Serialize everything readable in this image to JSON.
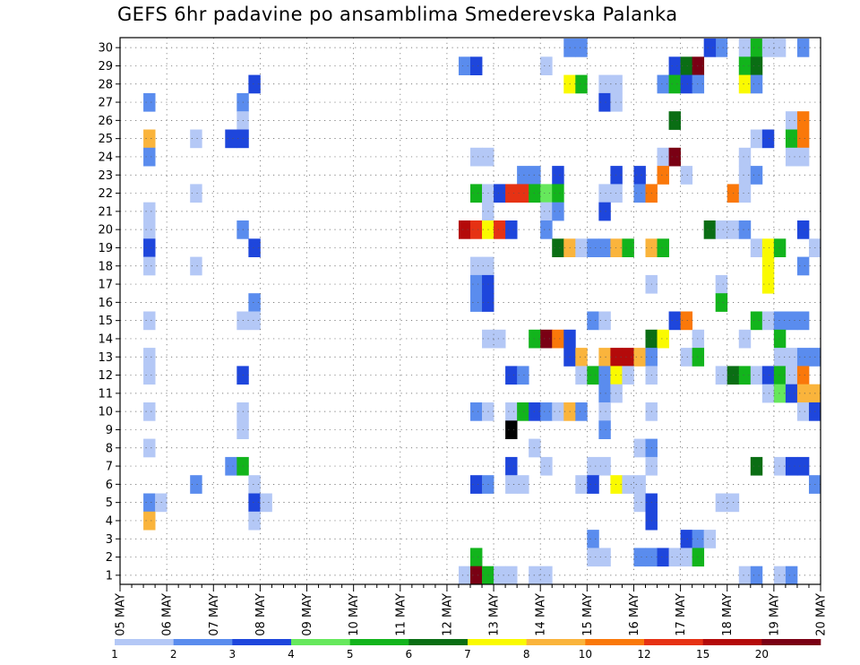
{
  "chart_data": {
    "type": "heatmap",
    "title": "GEFS 6hr padavine po ansamblima Smederevska Palanka",
    "y_ticks": [
      1,
      2,
      3,
      4,
      5,
      6,
      7,
      8,
      9,
      10,
      11,
      12,
      13,
      14,
      15,
      16,
      17,
      18,
      19,
      20,
      21,
      22,
      23,
      24,
      25,
      26,
      27,
      28,
      29,
      30
    ],
    "x_ticks": [
      "05 MAY",
      "06 MAY",
      "07 MAY",
      "08 MAY",
      "09 MAY",
      "10 MAY",
      "11 MAY",
      "12 MAY",
      "13 MAY",
      "14 MAY",
      "15 MAY",
      "16 MAY",
      "17 MAY",
      "18 MAY",
      "19 MAY",
      "20 MAY"
    ],
    "x_steps_per_day": 4,
    "x_range_steps": [
      0,
      60
    ],
    "legend": {
      "labels": [
        "1",
        "2",
        "3",
        "4",
        "5",
        "6",
        "7",
        "8",
        "10",
        "12",
        "15",
        "20"
      ],
      "colors": [
        "#b4c8f6",
        "#5a8cee",
        "#1e46dc",
        "#66e85c",
        "#12b41c",
        "#0a6e14",
        "#fafa00",
        "#fab43c",
        "#fa780a",
        "#e63214",
        "#b40a0a",
        "#7a0014"
      ]
    },
    "cells": [
      [
        30,
        39,
        2
      ],
      [
        30,
        40,
        2
      ],
      [
        30,
        52,
        2
      ],
      [
        30,
        51,
        3
      ],
      [
        30,
        54,
        1
      ],
      [
        30,
        55,
        5
      ],
      [
        30,
        56,
        1
      ],
      [
        30,
        57,
        1
      ],
      [
        30,
        59,
        2
      ],
      [
        29,
        30,
        2
      ],
      [
        29,
        31,
        3
      ],
      [
        29,
        37,
        1
      ],
      [
        29,
        48,
        3
      ],
      [
        29,
        49,
        6
      ],
      [
        29,
        50,
        12
      ],
      [
        29,
        54,
        5
      ],
      [
        29,
        55,
        6
      ],
      [
        28,
        12,
        3
      ],
      [
        28,
        39,
        7
      ],
      [
        28,
        40,
        5
      ],
      [
        28,
        42,
        1
      ],
      [
        28,
        43,
        1
      ],
      [
        28,
        47,
        2
      ],
      [
        28,
        48,
        5
      ],
      [
        28,
        49,
        3
      ],
      [
        28,
        50,
        2
      ],
      [
        28,
        54,
        7
      ],
      [
        28,
        55,
        2
      ],
      [
        27,
        3,
        2
      ],
      [
        27,
        11,
        2
      ],
      [
        27,
        42,
        3
      ],
      [
        27,
        43,
        1
      ],
      [
        26,
        11,
        1
      ],
      [
        26,
        48,
        6
      ],
      [
        26,
        58,
        1
      ],
      [
        26,
        59,
        9
      ],
      [
        25,
        3,
        8
      ],
      [
        25,
        7,
        1
      ],
      [
        25,
        10,
        3
      ],
      [
        25,
        11,
        3
      ],
      [
        25,
        55,
        1
      ],
      [
        25,
        56,
        3
      ],
      [
        25,
        58,
        5
      ],
      [
        25,
        59,
        9
      ],
      [
        24,
        3,
        2
      ],
      [
        24,
        31,
        1
      ],
      [
        24,
        32,
        1
      ],
      [
        24,
        47,
        1
      ],
      [
        24,
        48,
        12
      ],
      [
        24,
        54,
        1
      ],
      [
        24,
        58,
        1
      ],
      [
        24,
        59,
        1
      ],
      [
        23,
        35,
        2
      ],
      [
        23,
        36,
        2
      ],
      [
        23,
        38,
        3
      ],
      [
        23,
        43,
        3
      ],
      [
        23,
        45,
        3
      ],
      [
        23,
        47,
        9
      ],
      [
        23,
        49,
        1
      ],
      [
        23,
        54,
        1
      ],
      [
        23,
        55,
        2
      ],
      [
        22,
        7,
        1
      ],
      [
        22,
        31,
        5
      ],
      [
        22,
        32,
        1
      ],
      [
        22,
        33,
        3
      ],
      [
        22,
        34,
        10
      ],
      [
        22,
        35,
        10
      ],
      [
        22,
        36,
        5
      ],
      [
        22,
        37,
        4
      ],
      [
        22,
        38,
        5
      ],
      [
        22,
        42,
        1
      ],
      [
        22,
        43,
        1
      ],
      [
        22,
        45,
        2
      ],
      [
        22,
        46,
        9
      ],
      [
        22,
        53,
        9
      ],
      [
        22,
        54,
        1
      ],
      [
        21,
        3,
        1
      ],
      [
        21,
        32,
        1
      ],
      [
        21,
        37,
        1
      ],
      [
        21,
        38,
        2
      ],
      [
        21,
        42,
        3
      ],
      [
        20,
        3,
        1
      ],
      [
        20,
        11,
        2
      ],
      [
        20,
        30,
        11
      ],
      [
        20,
        31,
        10
      ],
      [
        20,
        32,
        7
      ],
      [
        20,
        33,
        10
      ],
      [
        20,
        34,
        3
      ],
      [
        20,
        37,
        2
      ],
      [
        20,
        51,
        6
      ],
      [
        20,
        52,
        1
      ],
      [
        20,
        53,
        1
      ],
      [
        20,
        54,
        2
      ],
      [
        20,
        59,
        3
      ],
      [
        19,
        3,
        3
      ],
      [
        19,
        12,
        3
      ],
      [
        19,
        38,
        6
      ],
      [
        19,
        39,
        8
      ],
      [
        19,
        40,
        1
      ],
      [
        19,
        41,
        2
      ],
      [
        19,
        42,
        2
      ],
      [
        19,
        43,
        8
      ],
      [
        19,
        44,
        5
      ],
      [
        19,
        46,
        8
      ],
      [
        19,
        47,
        5
      ],
      [
        19,
        55,
        1
      ],
      [
        19,
        56,
        7
      ],
      [
        19,
        57,
        5
      ],
      [
        19,
        60,
        1
      ],
      [
        18,
        3,
        1
      ],
      [
        18,
        7,
        1
      ],
      [
        18,
        31,
        1
      ],
      [
        18,
        32,
        1
      ],
      [
        18,
        56,
        7
      ],
      [
        18,
        59,
        2
      ],
      [
        17,
        31,
        2
      ],
      [
        17,
        32,
        3
      ],
      [
        17,
        46,
        1
      ],
      [
        17,
        52,
        1
      ],
      [
        17,
        56,
        7
      ],
      [
        16,
        12,
        2
      ],
      [
        16,
        31,
        2
      ],
      [
        16,
        32,
        3
      ],
      [
        16,
        52,
        5
      ],
      [
        15,
        3,
        1
      ],
      [
        15,
        11,
        1
      ],
      [
        15,
        12,
        1
      ],
      [
        15,
        41,
        2
      ],
      [
        15,
        42,
        1
      ],
      [
        15,
        48,
        3
      ],
      [
        15,
        49,
        9
      ],
      [
        15,
        55,
        5
      ],
      [
        15,
        56,
        1
      ],
      [
        15,
        57,
        2
      ],
      [
        15,
        58,
        2
      ],
      [
        15,
        59,
        2
      ],
      [
        14,
        32,
        1
      ],
      [
        14,
        33,
        1
      ],
      [
        14,
        36,
        5
      ],
      [
        14,
        37,
        12
      ],
      [
        14,
        38,
        9
      ],
      [
        14,
        39,
        3
      ],
      [
        14,
        46,
        6
      ],
      [
        14,
        47,
        7
      ],
      [
        14,
        50,
        1
      ],
      [
        14,
        54,
        1
      ],
      [
        14,
        57,
        5
      ],
      [
        13,
        3,
        1
      ],
      [
        13,
        39,
        3
      ],
      [
        13,
        40,
        8
      ],
      [
        13,
        42,
        8
      ],
      [
        13,
        43,
        11
      ],
      [
        13,
        44,
        11
      ],
      [
        13,
        45,
        8
      ],
      [
        13,
        46,
        2
      ],
      [
        13,
        49,
        1
      ],
      [
        13,
        50,
        5
      ],
      [
        13,
        57,
        1
      ],
      [
        13,
        58,
        1
      ],
      [
        13,
        59,
        2
      ],
      [
        13,
        60,
        2
      ],
      [
        12,
        3,
        1
      ],
      [
        12,
        11,
        3
      ],
      [
        12,
        34,
        3
      ],
      [
        12,
        35,
        2
      ],
      [
        12,
        40,
        1
      ],
      [
        12,
        41,
        5
      ],
      [
        12,
        42,
        2
      ],
      [
        12,
        43,
        7
      ],
      [
        12,
        44,
        1
      ],
      [
        12,
        46,
        1
      ],
      [
        12,
        52,
        1
      ],
      [
        12,
        53,
        6
      ],
      [
        12,
        54,
        5
      ],
      [
        12,
        55,
        1
      ],
      [
        12,
        56,
        3
      ],
      [
        12,
        57,
        5
      ],
      [
        12,
        58,
        1
      ],
      [
        12,
        59,
        9
      ],
      [
        11,
        42,
        2
      ],
      [
        11,
        43,
        1
      ],
      [
        11,
        56,
        1
      ],
      [
        11,
        57,
        4
      ],
      [
        11,
        58,
        3
      ],
      [
        11,
        59,
        8
      ],
      [
        11,
        60,
        8
      ],
      [
        10,
        3,
        1
      ],
      [
        10,
        11,
        1
      ],
      [
        10,
        31,
        2
      ],
      [
        10,
        32,
        1
      ],
      [
        10,
        34,
        1
      ],
      [
        10,
        35,
        5
      ],
      [
        10,
        36,
        3
      ],
      [
        10,
        37,
        2
      ],
      [
        10,
        38,
        1
      ],
      [
        10,
        39,
        8
      ],
      [
        10,
        40,
        2
      ],
      [
        10,
        42,
        1
      ],
      [
        10,
        46,
        1
      ],
      [
        10,
        59,
        1
      ],
      [
        10,
        60,
        3
      ],
      [
        9,
        11,
        1
      ],
      [
        9,
        34,
        15
      ],
      [
        9,
        42,
        2
      ],
      [
        8,
        3,
        1
      ],
      [
        8,
        36,
        1
      ],
      [
        8,
        45,
        1
      ],
      [
        8,
        46,
        2
      ],
      [
        7,
        10,
        2
      ],
      [
        7,
        11,
        5
      ],
      [
        7,
        34,
        3
      ],
      [
        7,
        37,
        1
      ],
      [
        7,
        41,
        1
      ],
      [
        7,
        42,
        1
      ],
      [
        7,
        46,
        1
      ],
      [
        7,
        55,
        6
      ],
      [
        7,
        57,
        1
      ],
      [
        7,
        58,
        3
      ],
      [
        7,
        59,
        3
      ],
      [
        6,
        7,
        2
      ],
      [
        6,
        12,
        1
      ],
      [
        6,
        31,
        3
      ],
      [
        6,
        32,
        2
      ],
      [
        6,
        34,
        1
      ],
      [
        6,
        35,
        1
      ],
      [
        6,
        40,
        1
      ],
      [
        6,
        41,
        3
      ],
      [
        6,
        43,
        7
      ],
      [
        6,
        44,
        1
      ],
      [
        6,
        45,
        1
      ],
      [
        6,
        60,
        2
      ],
      [
        5,
        3,
        2
      ],
      [
        5,
        4,
        1
      ],
      [
        5,
        12,
        3
      ],
      [
        5,
        13,
        1
      ],
      [
        5,
        45,
        1
      ],
      [
        5,
        46,
        3
      ],
      [
        5,
        52,
        1
      ],
      [
        5,
        53,
        1
      ],
      [
        4,
        3,
        8
      ],
      [
        4,
        12,
        1
      ],
      [
        4,
        46,
        3
      ],
      [
        3,
        41,
        2
      ],
      [
        3,
        49,
        3
      ],
      [
        3,
        50,
        2
      ],
      [
        3,
        51,
        1
      ],
      [
        2,
        31,
        5
      ],
      [
        2,
        41,
        1
      ],
      [
        2,
        42,
        1
      ],
      [
        2,
        45,
        2
      ],
      [
        2,
        46,
        2
      ],
      [
        2,
        47,
        3
      ],
      [
        2,
        48,
        1
      ],
      [
        2,
        49,
        1
      ],
      [
        2,
        50,
        5
      ],
      [
        1,
        30,
        1
      ],
      [
        1,
        31,
        12
      ],
      [
        1,
        32,
        5
      ],
      [
        1,
        33,
        1
      ],
      [
        1,
        34,
        1
      ],
      [
        1,
        36,
        1
      ],
      [
        1,
        37,
        1
      ],
      [
        1,
        54,
        1
      ],
      [
        1,
        55,
        2
      ],
      [
        1,
        57,
        1
      ],
      [
        1,
        58,
        2
      ]
    ]
  }
}
